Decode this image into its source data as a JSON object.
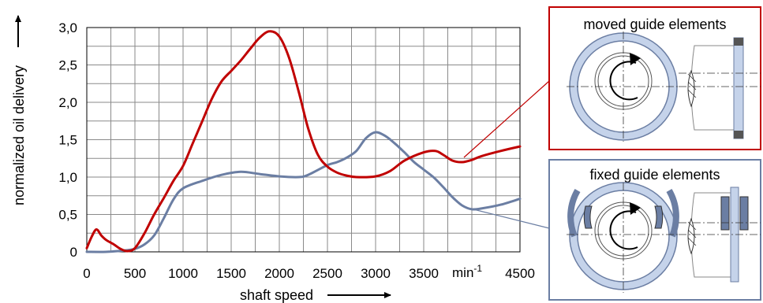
{
  "chart_data": {
    "type": "line",
    "title": "",
    "xlabel": "shaft speed",
    "ylabel": "normalized oil delivery",
    "x_unit": "min",
    "x_unit_exp": "-1",
    "xlim": [
      0,
      4500
    ],
    "ylim": [
      0,
      3.0
    ],
    "x_ticks": [
      {
        "value": 0,
        "label": "0"
      },
      {
        "value": 500,
        "label": "500"
      },
      {
        "value": 1000,
        "label": "1000"
      },
      {
        "value": 1500,
        "label": "1500"
      },
      {
        "value": 2000,
        "label": "2000"
      },
      {
        "value": 2500,
        "label": "2500"
      },
      {
        "value": 3000,
        "label": "3000"
      },
      {
        "value": 3500,
        "label": "3500"
      },
      {
        "value": 4500,
        "label": "4500"
      }
    ],
    "y_ticks": [
      {
        "value": 0,
        "label": "0"
      },
      {
        "value": 0.5,
        "label": "0,5"
      },
      {
        "value": 1.0,
        "label": "1,0"
      },
      {
        "value": 1.5,
        "label": "1,5"
      },
      {
        "value": 2.0,
        "label": "2,0"
      },
      {
        "value": 2.5,
        "label": "2,5"
      },
      {
        "value": 3.0,
        "label": "3,0"
      }
    ],
    "grid": true,
    "series": [
      {
        "name": "moved guide elements",
        "color": "#c00000",
        "points": [
          [
            0,
            0.05
          ],
          [
            50,
            0.2
          ],
          [
            100,
            0.3
          ],
          [
            150,
            0.22
          ],
          [
            200,
            0.16
          ],
          [
            280,
            0.1
          ],
          [
            350,
            0.04
          ],
          [
            420,
            0.01
          ],
          [
            500,
            0.05
          ],
          [
            600,
            0.25
          ],
          [
            700,
            0.5
          ],
          [
            800,
            0.72
          ],
          [
            900,
            0.95
          ],
          [
            1000,
            1.15
          ],
          [
            1100,
            1.45
          ],
          [
            1200,
            1.75
          ],
          [
            1300,
            2.05
          ],
          [
            1400,
            2.28
          ],
          [
            1500,
            2.42
          ],
          [
            1600,
            2.56
          ],
          [
            1700,
            2.72
          ],
          [
            1800,
            2.87
          ],
          [
            1900,
            2.95
          ],
          [
            2000,
            2.88
          ],
          [
            2100,
            2.6
          ],
          [
            2200,
            2.15
          ],
          [
            2300,
            1.65
          ],
          [
            2400,
            1.3
          ],
          [
            2500,
            1.14
          ],
          [
            2600,
            1.06
          ],
          [
            2700,
            1.02
          ],
          [
            2800,
            1.0
          ],
          [
            3000,
            1.01
          ],
          [
            3150,
            1.08
          ],
          [
            3300,
            1.22
          ],
          [
            3500,
            1.33
          ],
          [
            3620,
            1.35
          ],
          [
            3700,
            1.3
          ],
          [
            3800,
            1.22
          ],
          [
            3900,
            1.2
          ],
          [
            4000,
            1.23
          ],
          [
            4100,
            1.28
          ],
          [
            4300,
            1.35
          ],
          [
            4500,
            1.41
          ]
        ]
      },
      {
        "name": "fixed guide elements",
        "color": "#6b7ea3",
        "points": [
          [
            0,
            0.0
          ],
          [
            200,
            0.0
          ],
          [
            400,
            0.02
          ],
          [
            500,
            0.04
          ],
          [
            600,
            0.1
          ],
          [
            700,
            0.22
          ],
          [
            800,
            0.45
          ],
          [
            900,
            0.7
          ],
          [
            1000,
            0.85
          ],
          [
            1200,
            0.95
          ],
          [
            1400,
            1.03
          ],
          [
            1600,
            1.07
          ],
          [
            1800,
            1.04
          ],
          [
            2000,
            1.01
          ],
          [
            2200,
            1.0
          ],
          [
            2300,
            1.03
          ],
          [
            2500,
            1.16
          ],
          [
            2600,
            1.2
          ],
          [
            2700,
            1.26
          ],
          [
            2800,
            1.35
          ],
          [
            2900,
            1.52
          ],
          [
            3000,
            1.6
          ],
          [
            3100,
            1.55
          ],
          [
            3200,
            1.45
          ],
          [
            3300,
            1.33
          ],
          [
            3400,
            1.2
          ],
          [
            3500,
            1.1
          ],
          [
            3600,
            1.0
          ],
          [
            3700,
            0.87
          ],
          [
            3800,
            0.73
          ],
          [
            3900,
            0.62
          ],
          [
            4000,
            0.57
          ],
          [
            4100,
            0.58
          ],
          [
            4300,
            0.63
          ],
          [
            4500,
            0.71
          ]
        ]
      }
    ]
  },
  "insets": [
    {
      "title": "moved guide elements",
      "border_color": "#c00000"
    },
    {
      "title": "fixed guide elements",
      "border_color": "#6b7ea3"
    }
  ]
}
